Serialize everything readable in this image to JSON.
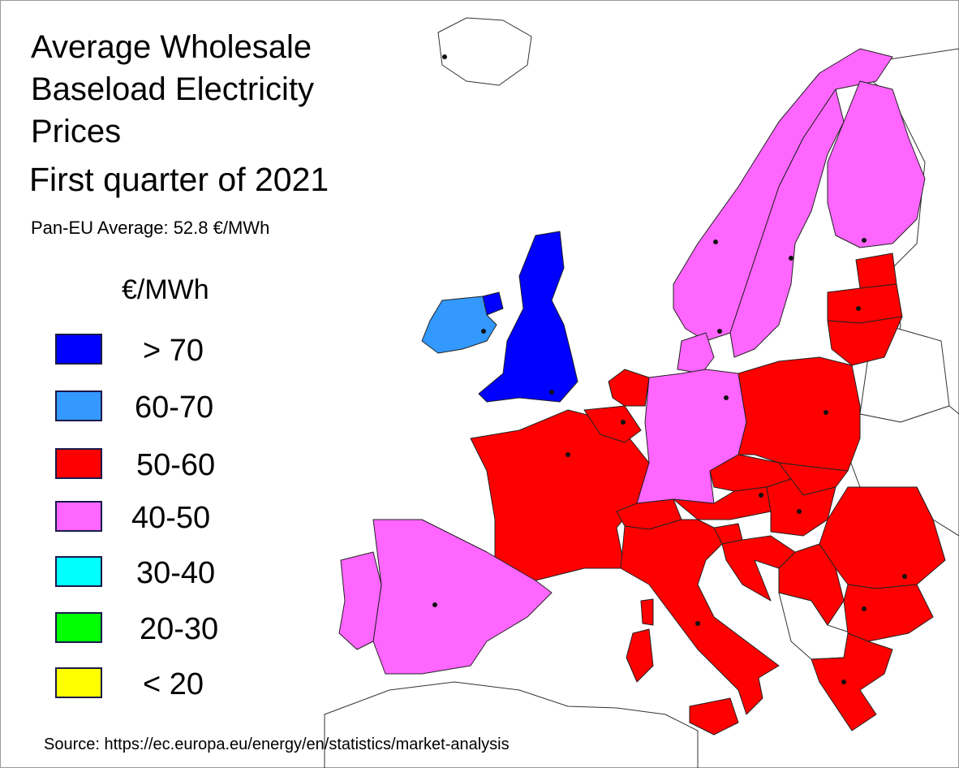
{
  "title": {
    "lines": [
      "Average Wholesale",
      "Baseload Electricity",
      "Prices"
    ],
    "subtitle": "First quarter of 2021",
    "average": "Pan-EU Average: 52.8 €/MWh"
  },
  "legend": {
    "unit": "€/MWh",
    "items": [
      {
        "label": "> 70",
        "color": "#0000ff"
      },
      {
        "label": "60-70",
        "color": "#3399ff"
      },
      {
        "label": "50-60",
        "color": "#ff0000"
      },
      {
        "label": "40-50",
        "color": "#ff66ff"
      },
      {
        "label": "30-40",
        "color": "#00ffff"
      },
      {
        "label": "20-30",
        "color": "#00ff00"
      },
      {
        "label": "< 20",
        "color": "#ffff00"
      }
    ]
  },
  "source": "Source: https://ec.europa.eu/energy/en/statistics/market-analysis",
  "map_colors": {
    "gt70": "#0000ff",
    "r60_70": "#3399ff",
    "r50_60": "#ff0000",
    "r40_50": "#ff66ff",
    "no_data": "#ffffff"
  }
}
